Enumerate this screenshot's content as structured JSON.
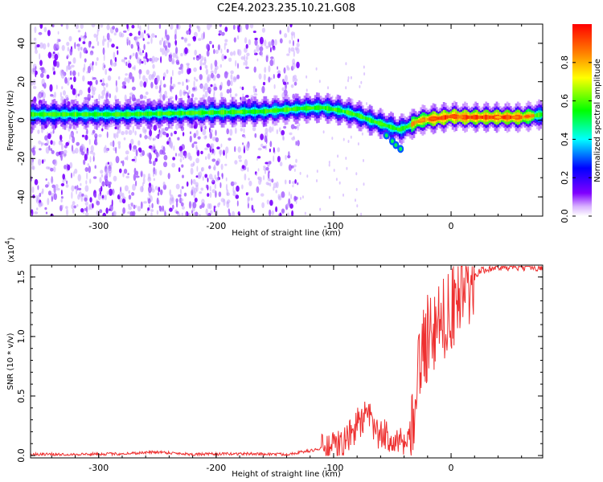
{
  "title": "C2E4.2023.235.10.21.G08",
  "chart_data": [
    {
      "type": "heatmap",
      "xlabel": "Height of straight line (km)",
      "ylabel": "Frequency (Hz)",
      "xlim": [
        -358,
        78
      ],
      "ylim": [
        -50,
        50
      ],
      "x_ticks": [
        -300,
        -200,
        -100,
        0
      ],
      "x_tick_labels": [
        "-300",
        "-200",
        "-100",
        "0"
      ],
      "y_ticks": [
        -40,
        -20,
        0,
        20,
        40
      ],
      "y_tick_labels": [
        "-40",
        "-20",
        "0",
        "20",
        "40"
      ],
      "colorbar": {
        "label": "Normalized spectral amplitude",
        "range": [
          0.0,
          1.0
        ],
        "ticks": [
          0.0,
          0.2,
          0.4,
          0.6,
          0.8
        ],
        "tick_labels": [
          "0.0",
          "0.2",
          "0.4",
          "0.6",
          "0.8"
        ],
        "colormap": [
          "#ffffff",
          "#8000ff",
          "#0000ff",
          "#00ffff",
          "#00ff00",
          "#ffff00",
          "#ff8000",
          "#ff0000"
        ]
      },
      "ridge": {
        "name": "dominant frequency",
        "x": [
          -358,
          -320,
          -280,
          -240,
          -200,
          -160,
          -130,
          -110,
          -95,
          -80,
          -70,
          -60,
          -50,
          -45,
          -40,
          -35,
          -30,
          -25,
          -20,
          -10,
          0,
          10,
          20,
          40,
          60,
          78
        ],
        "y": [
          3,
          3,
          3,
          3.5,
          4,
          4.5,
          6,
          6.5,
          5,
          2.5,
          0,
          -2,
          -4,
          -5,
          -4,
          -2.5,
          -1,
          0,
          0.5,
          1,
          2,
          1.5,
          1.5,
          1.5,
          1.5,
          3
        ]
      },
      "branch": {
        "x": [
          -55,
          -50,
          -47,
          -43
        ],
        "y": [
          -8,
          -11,
          -13,
          -15
        ]
      }
    },
    {
      "type": "line",
      "xlabel": "Height of straight line (km)",
      "ylabel": "SNR (10 * v/v)",
      "y_multiplier": "(x10^4)",
      "xlim": [
        -358,
        78
      ],
      "ylim": [
        -0.02,
        1.6
      ],
      "x_ticks": [
        -300,
        -200,
        -100,
        0
      ],
      "x_tick_labels": [
        "-300",
        "-200",
        "-100",
        "0"
      ],
      "y_ticks": [
        0.0,
        0.5,
        1.0,
        1.5
      ],
      "y_tick_labels": [
        "0.0",
        "0.5",
        "1.0",
        "1.5"
      ],
      "series": [
        {
          "color": "#ee3030",
          "x": [
            -358,
            -320,
            -280,
            -250,
            -220,
            -180,
            -140,
            -120,
            -110,
            -100,
            -95,
            -90,
            -85,
            -80,
            -75,
            -70,
            -65,
            -60,
            -55,
            -50,
            -45,
            -40,
            -35,
            -32,
            -30,
            -28,
            -25,
            -22,
            -20,
            -15,
            -12,
            -10,
            -5,
            0,
            5,
            10,
            15,
            20,
            25,
            30,
            40,
            50,
            60,
            70,
            78
          ],
          "y": [
            0.01,
            0.01,
            0.015,
            0.03,
            0.01,
            0.015,
            0.01,
            0.04,
            0.06,
            0.07,
            0.09,
            0.12,
            0.18,
            0.27,
            0.3,
            0.32,
            0.22,
            0.15,
            0.18,
            0.14,
            0.12,
            0.08,
            0.1,
            0.2,
            0.5,
            0.7,
            0.9,
            0.85,
            1.0,
            0.95,
            1.05,
            1.1,
            1.15,
            1.2,
            1.3,
            1.35,
            1.4,
            1.5,
            1.55,
            1.57,
            1.58,
            1.58,
            1.58,
            1.58,
            1.58
          ]
        }
      ]
    }
  ]
}
